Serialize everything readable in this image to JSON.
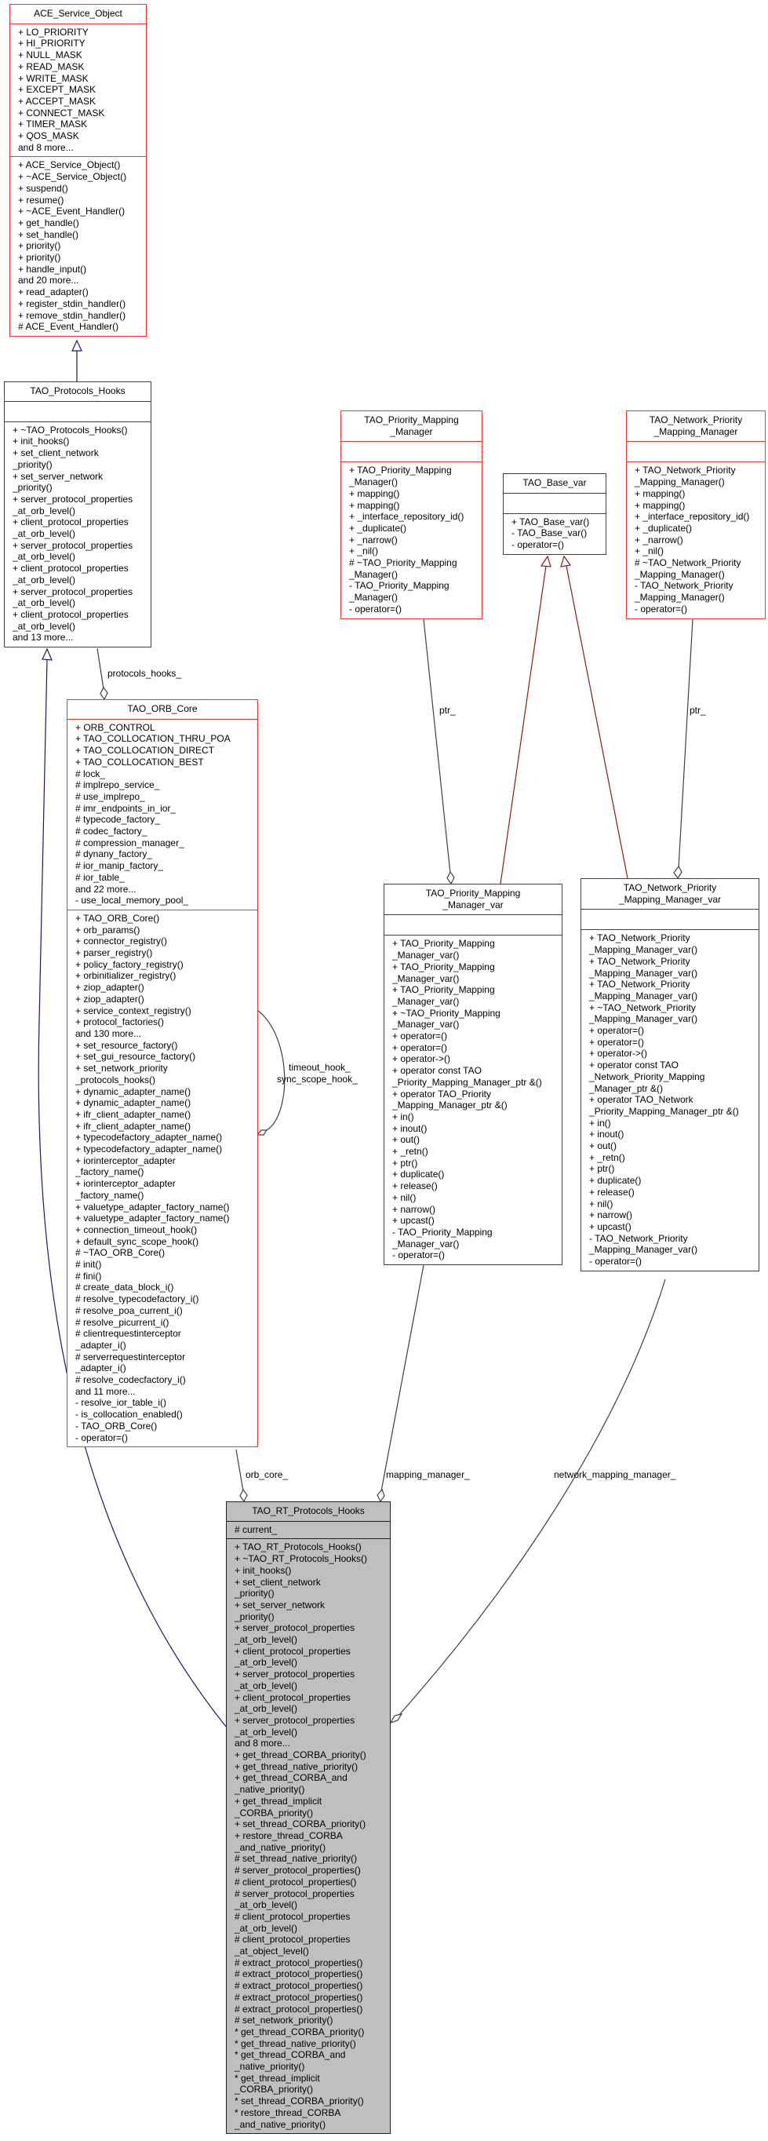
{
  "colors": {
    "class_border_red": "#ff3333",
    "class_border_black": "#404040",
    "focus_fill": "#bfbfbf",
    "public_inheritance": "#191970",
    "template_inheritance": "#8b1a1a",
    "usage_edge": "#404040"
  },
  "boxes": {
    "ace_service_object": {
      "title": [
        "ACE_Service_Object"
      ],
      "attributes": [
        "+ LO_PRIORITY",
        "+ HI_PRIORITY",
        "+ NULL_MASK",
        "+ READ_MASK",
        "+ WRITE_MASK",
        "+ EXCEPT_MASK",
        "+ ACCEPT_MASK",
        "+ CONNECT_MASK",
        "+ TIMER_MASK",
        "+ QOS_MASK",
        "and 8 more..."
      ],
      "methods": [
        "+ ACE_Service_Object()",
        "+ ~ACE_Service_Object()",
        "+ suspend()",
        "+ resume()",
        "+ ~ACE_Event_Handler()",
        "+ get_handle()",
        "+ set_handle()",
        "+ priority()",
        "+ priority()",
        "+ handle_input()",
        "and 20 more...",
        "+ read_adapter()",
        "+ register_stdin_handler()",
        "+ remove_stdin_handler()",
        "# ACE_Event_Handler()"
      ]
    },
    "tao_protocols_hooks": {
      "title": [
        "TAO_Protocols_Hooks"
      ],
      "attributes": [],
      "methods": [
        "+ ~TAO_Protocols_Hooks()",
        "+ init_hooks()",
        "+ set_client_network",
        "_priority()",
        "+ set_server_network",
        "_priority()",
        "+ server_protocol_properties",
        "_at_orb_level()",
        "+ client_protocol_properties",
        "_at_orb_level()",
        "+ server_protocol_properties",
        "_at_orb_level()",
        "+ client_protocol_properties",
        "_at_orb_level()",
        "+ server_protocol_properties",
        "_at_orb_level()",
        "+ client_protocol_properties",
        "_at_orb_level()",
        "and 13 more..."
      ]
    },
    "tao_orb_core": {
      "title": [
        "TAO_ORB_Core"
      ],
      "attributes": [
        "+ ORB_CONTROL",
        "+ TAO_COLLOCATION_THRU_POA",
        "+ TAO_COLLOCATION_DIRECT",
        "+ TAO_COLLOCATION_BEST",
        "# lock_",
        "# implrepo_service_",
        "# use_implrepo_",
        "# imr_endpoints_in_ior_",
        "# typecode_factory_",
        "# codec_factory_",
        "# compression_manager_",
        "# dynany_factory_",
        "# ior_manip_factory_",
        "# ior_table_",
        "and 22 more...",
        "- use_local_memory_pool_"
      ],
      "methods": [
        "+ TAO_ORB_Core()",
        "+ orb_params()",
        "+ connector_registry()",
        "+ parser_registry()",
        "+ policy_factory_registry()",
        "+ orbinitializer_registry()",
        "+ ziop_adapter()",
        "+ ziop_adapter()",
        "+ service_context_registry()",
        "+ protocol_factories()",
        "and 130 more...",
        "+ set_resource_factory()",
        "+ set_gui_resource_factory()",
        "+ set_network_priority",
        "_protocols_hooks()",
        "+ dynamic_adapter_name()",
        "+ dynamic_adapter_name()",
        "+ ifr_client_adapter_name()",
        "+ ifr_client_adapter_name()",
        "+ typecodefactory_adapter_name()",
        "+ typecodefactory_adapter_name()",
        "+ iorinterceptor_adapter",
        "_factory_name()",
        "+ iorinterceptor_adapter",
        "_factory_name()",
        "+ valuetype_adapter_factory_name()",
        "+ valuetype_adapter_factory_name()",
        "+ connection_timeout_hook()",
        "+ default_sync_scope_hook()",
        "# ~TAO_ORB_Core()",
        "# init()",
        "# fini()",
        "# create_data_block_i()",
        "# resolve_typecodefactory_i()",
        "# resolve_poa_current_i()",
        "# resolve_picurrent_i()",
        "# clientrequestinterceptor",
        "_adapter_i()",
        "# serverrequestinterceptor",
        "_adapter_i()",
        "# resolve_codecfactory_i()",
        "and 11 more...",
        "- resolve_ior_table_i()",
        "- is_collocation_enabled()",
        "- TAO_ORB_Core()",
        "- operator=()"
      ]
    },
    "tao_priority_mapping_manager": {
      "title": [
        "TAO_Priority_Mapping",
        "_Manager"
      ],
      "attributes": [],
      "methods": [
        "+ TAO_Priority_Mapping",
        "_Manager()",
        "+ mapping()",
        "+ mapping()",
        "+ _interface_repository_id()",
        "+ _duplicate()",
        "+ _narrow()",
        "+ _nil()",
        "# ~TAO_Priority_Mapping",
        "_Manager()",
        "- TAO_Priority_Mapping",
        "_Manager()",
        "- operator=()"
      ]
    },
    "tao_base_var": {
      "title": [
        "TAO_Base_var"
      ],
      "attributes": [],
      "methods": [
        "+ TAO_Base_var()",
        "- TAO_Base_var()",
        "- operator=()"
      ]
    },
    "tao_network_priority_mapping_manager": {
      "title": [
        "TAO_Network_Priority",
        "_Mapping_Manager"
      ],
      "attributes": [],
      "methods": [
        "+ TAO_Network_Priority",
        "_Mapping_Manager()",
        "+ mapping()",
        "+ mapping()",
        "+ _interface_repository_id()",
        "+ _duplicate()",
        "+ _narrow()",
        "+ _nil()",
        "# ~TAO_Network_Priority",
        "_Mapping_Manager()",
        "- TAO_Network_Priority",
        "_Mapping_Manager()",
        "- operator=()"
      ]
    },
    "tao_priority_mapping_manager_var": {
      "title": [
        "TAO_Priority_Mapping",
        "_Manager_var"
      ],
      "attributes": [],
      "methods": [
        "+ TAO_Priority_Mapping",
        "_Manager_var()",
        "+ TAO_Priority_Mapping",
        "_Manager_var()",
        "+ TAO_Priority_Mapping",
        "_Manager_var()",
        "+ ~TAO_Priority_Mapping",
        "_Manager_var()",
        "+ operator=()",
        "+ operator=()",
        "+ operator->()",
        "+ operator const TAO",
        "_Priority_Mapping_Manager_ptr &()",
        "+ operator TAO_Priority",
        "_Mapping_Manager_ptr &()",
        "+ in()",
        "+ inout()",
        "+ out()",
        "+ _retn()",
        "+ ptr()",
        "+ duplicate()",
        "+ release()",
        "+ nil()",
        "+ narrow()",
        "+ upcast()",
        "- TAO_Priority_Mapping",
        "_Manager_var()",
        "- operator=()"
      ]
    },
    "tao_network_priority_mapping_manager_var": {
      "title": [
        "TAO_Network_Priority",
        "_Mapping_Manager_var"
      ],
      "attributes": [],
      "methods": [
        "+ TAO_Network_Priority",
        "_Mapping_Manager_var()",
        "+ TAO_Network_Priority",
        "_Mapping_Manager_var()",
        "+ TAO_Network_Priority",
        "_Mapping_Manager_var()",
        "+ ~TAO_Network_Priority",
        "_Mapping_Manager_var()",
        "+ operator=()",
        "+ operator=()",
        "+ operator->()",
        "+ operator const TAO",
        "_Network_Priority_Mapping",
        "_Manager_ptr &()",
        "+ operator TAO_Network",
        "_Priority_Mapping_Manager_ptr &()",
        "+ in()",
        "+ inout()",
        "+ out()",
        "+ _retn()",
        "+ ptr()",
        "+ duplicate()",
        "+ release()",
        "+ nil()",
        "+ narrow()",
        "+ upcast()",
        "- TAO_Network_Priority",
        "_Mapping_Manager_var()",
        "- operator=()"
      ]
    },
    "tao_rt_protocols_hooks": {
      "title": [
        "TAO_RT_Protocols_Hooks"
      ],
      "attributes": [
        "# current_"
      ],
      "methods": [
        "+ TAO_RT_Protocols_Hooks()",
        "+ ~TAO_RT_Protocols_Hooks()",
        "+ init_hooks()",
        "+ set_client_network",
        "_priority()",
        "+ set_server_network",
        "_priority()",
        "+ server_protocol_properties",
        "_at_orb_level()",
        "+ client_protocol_properties",
        "_at_orb_level()",
        "+ server_protocol_properties",
        "_at_orb_level()",
        "+ client_protocol_properties",
        "_at_orb_level()",
        "+ server_protocol_properties",
        "_at_orb_level()",
        "and 8 more...",
        "+ get_thread_CORBA_priority()",
        "+ get_thread_native_priority()",
        "+ get_thread_CORBA_and",
        "_native_priority()",
        "+ get_thread_implicit",
        "_CORBA_priority()",
        "+ set_thread_CORBA_priority()",
        "+ restore_thread_CORBA",
        "_and_native_priority()",
        "# set_thread_native_priority()",
        "# server_protocol_properties()",
        "# client_protocol_properties()",
        "# server_protocol_properties",
        "_at_orb_level()",
        "# client_protocol_properties",
        "_at_orb_level()",
        "# client_protocol_properties",
        "_at_object_level()",
        "# extract_protocol_properties()",
        "# extract_protocol_properties()",
        "# extract_protocol_properties()",
        "# extract_protocol_properties()",
        "# extract_protocol_properties()",
        "# set_network_priority()",
        "* get_thread_CORBA_priority()",
        "* get_thread_native_priority()",
        "* get_thread_CORBA_and",
        "_native_priority()",
        "* get_thread_implicit",
        "_CORBA_priority()",
        "* set_thread_CORBA_priority()",
        "* restore_thread_CORBA",
        "_and_native_priority()"
      ]
    }
  },
  "edge_labels": {
    "protocols_hooks": "protocols_hooks_",
    "timeout_hook": "timeout_hook_",
    "sync_scope_hook": "sync_scope_hook_",
    "ptr_left": "ptr_",
    "ptr_right": "ptr_",
    "orb_core": "orb_core_",
    "mapping_manager": "mapping_manager_",
    "network_mapping_manager": "network_mapping_manager_"
  }
}
